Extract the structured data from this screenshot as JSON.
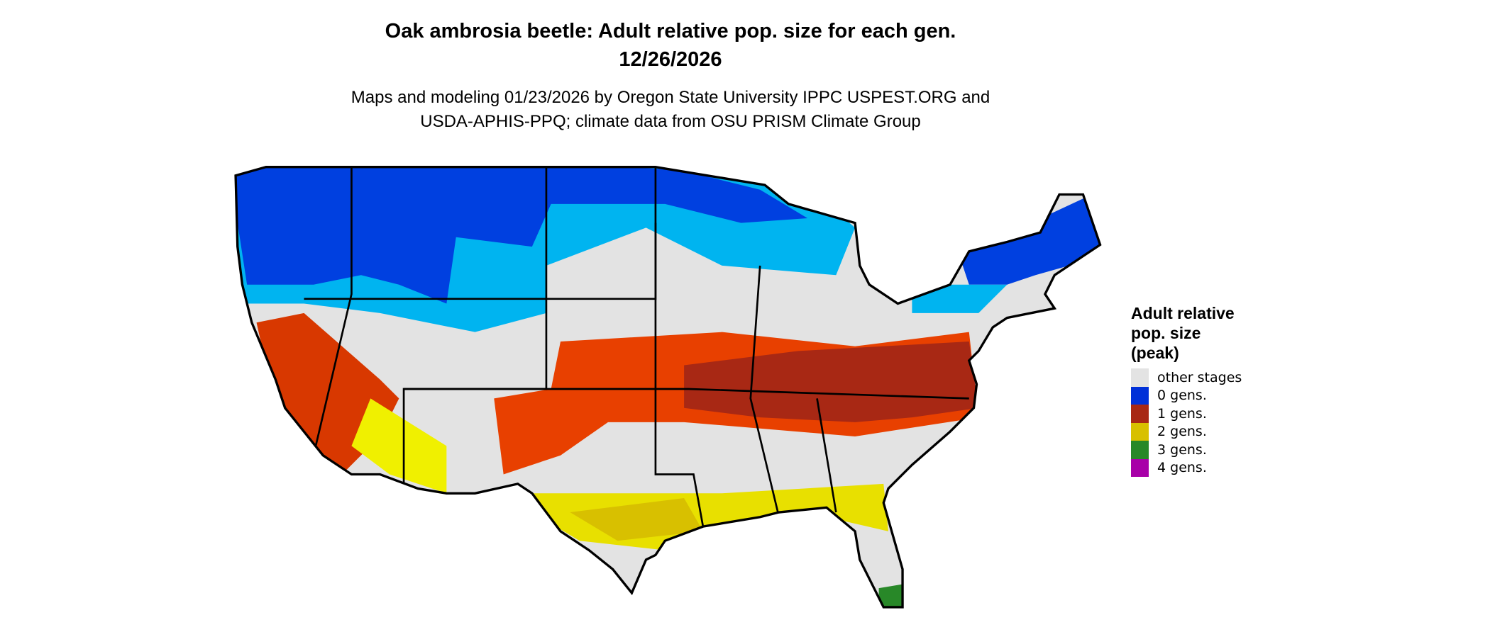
{
  "title": {
    "line1": "Oak ambrosia beetle: Adult relative pop. size for each gen.",
    "line2": "12/26/2026"
  },
  "subtitle": {
    "line1": "Maps and modeling 01/23/2026 by Oregon State University IPPC USPEST.ORG and",
    "line2": "USDA-APHIS-PPQ; climate data from OSU PRISM Climate Group"
  },
  "map": {
    "region": "Contiguous United States",
    "colors": {
      "background": "#e3e3e3",
      "border": "#000000",
      "light_blue": "#00b4f0"
    }
  },
  "legend": {
    "title_lines": [
      "Adult relative",
      "pop. size",
      "(peak)"
    ],
    "items": [
      {
        "label": "other stages",
        "color": "#e3e3e3"
      },
      {
        "label": "0 gens.",
        "color": "#0030d8"
      },
      {
        "label": "1 gens.",
        "color": "#a82814"
      },
      {
        "label": "2 gens.",
        "color": "#d8c000"
      },
      {
        "label": "3 gens.",
        "color": "#288828"
      },
      {
        "label": "4 gens.",
        "color": "#a800a8"
      }
    ]
  }
}
